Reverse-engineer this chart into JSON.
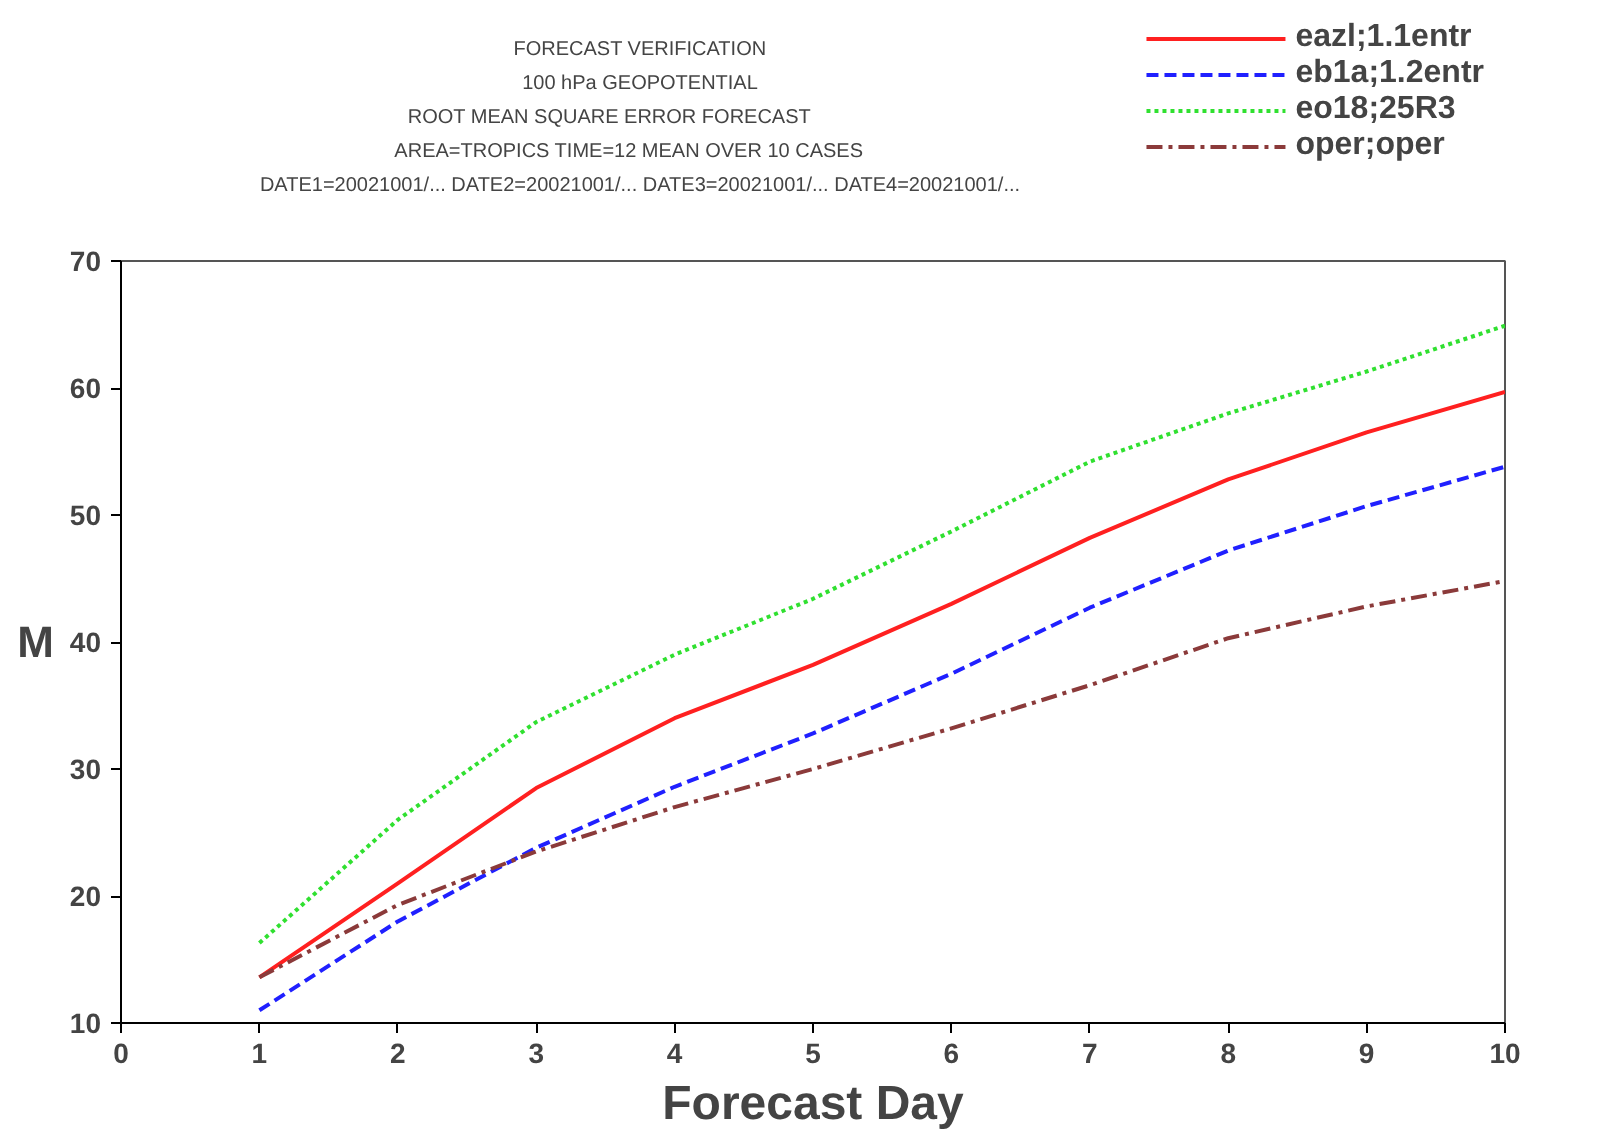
{
  "chart_data": {
    "type": "line",
    "title": "FORECAST VERIFICATION",
    "subtitle": "100 hPa GEOPOTENTIAL",
    "annotations": [
      "ROOT MEAN SQUARE ERROR            FORECAST",
      "AREA=TROPICS   TIME=12   MEAN OVER 10 CASES",
      "DATE1=20021001/... DATE2=20021001/... DATE3=20021001/... DATE4=20021001/..."
    ],
    "xlabel": "Forecast Day",
    "ylabel": "M",
    "x": [
      1,
      2,
      3,
      4,
      5,
      6,
      7,
      8,
      9,
      10
    ],
    "xlim": [
      0,
      10
    ],
    "xticks": [
      0,
      1,
      2,
      3,
      4,
      5,
      6,
      7,
      8,
      9,
      10
    ],
    "ylim": [
      10,
      70
    ],
    "yticks": [
      10,
      20,
      30,
      40,
      50,
      60,
      70
    ],
    "grid": false,
    "legend": "top right",
    "marker": "none",
    "series": [
      {
        "name": "eazl;1.1entr",
        "color": "#ff2020",
        "line_style": "solid",
        "values": [
          13.6,
          21,
          28.5,
          34,
          38.2,
          43,
          48.2,
          52.8,
          56.5,
          59.7
        ]
      },
      {
        "name": "eb1a;1.2entr",
        "color": "#2020ff",
        "line_style": "dashed",
        "values": [
          11,
          18,
          23.8,
          28.6,
          32.8,
          37.5,
          42.7,
          47.2,
          50.7,
          53.8
        ]
      },
      {
        "name": "eo18;25R3",
        "color": "#30e030",
        "line_style": "dotted",
        "values": [
          16.3,
          26,
          33.7,
          39,
          43.4,
          48.7,
          54.2,
          58,
          61.3,
          64.9
        ]
      },
      {
        "name": "oper;oper",
        "color": "#8b3a3a",
        "line_style": "dashdot",
        "values": [
          13.6,
          19.3,
          23.5,
          27,
          30,
          33.2,
          36.6,
          40.3,
          42.8,
          44.8
        ]
      }
    ]
  }
}
